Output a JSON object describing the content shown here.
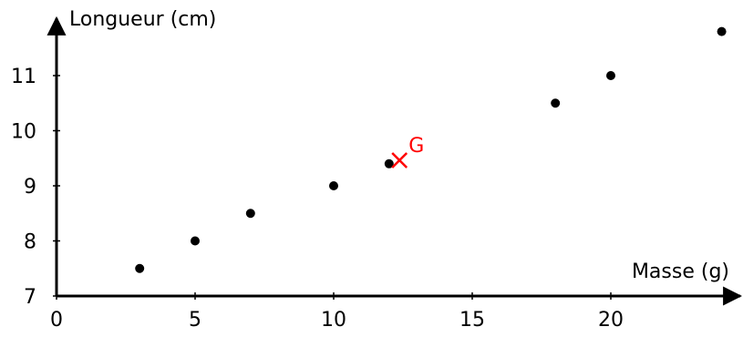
{
  "chart_data": {
    "type": "scatter",
    "title": "",
    "xlabel": "Masse (g)",
    "ylabel": "Longueur (cm)",
    "xlim": [
      0,
      24.5
    ],
    "ylim": [
      7,
      11.9
    ],
    "xticks": [
      0,
      5,
      10,
      15,
      20
    ],
    "yticks": [
      7,
      8,
      9,
      10,
      11
    ],
    "grid": false,
    "series": [
      {
        "x": [
          3,
          5,
          7,
          10,
          12,
          18,
          20,
          24
        ],
        "y": [
          7.5,
          8,
          8.5,
          9,
          9.4,
          10.5,
          11,
          11.8
        ],
        "color": "#000000"
      }
    ],
    "annotations": [
      {
        "label": "G",
        "x": 12.375,
        "y": 9.4625,
        "marker": "cross",
        "color": "#ff0000"
      }
    ]
  }
}
